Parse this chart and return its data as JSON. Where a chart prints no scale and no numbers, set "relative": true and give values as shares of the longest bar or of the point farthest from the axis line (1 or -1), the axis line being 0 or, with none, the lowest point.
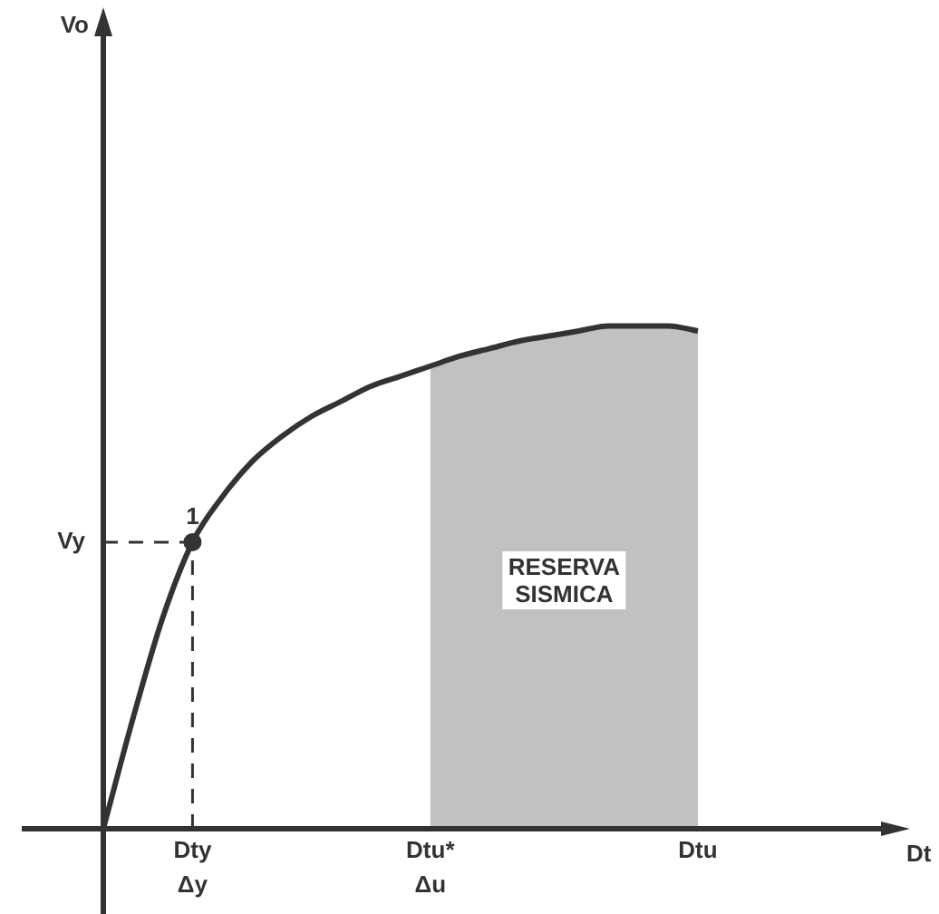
{
  "chart_data": {
    "type": "line",
    "relative": true,
    "categories": [
      null,
      null,
      null,
      "Dty\nΔy",
      null,
      null,
      null,
      null,
      null,
      null,
      null,
      "Dtu*\nΔu",
      null,
      null,
      null,
      null,
      null,
      null,
      null,
      null,
      "Dtu"
    ],
    "series": [
      {
        "color": "#333333",
        "values": [
          0,
          0.22,
          0.42,
          0.57,
          0.66,
          0.73,
          0.78,
          0.82,
          0.85,
          0.88,
          0.9,
          0.92,
          0.94,
          0.955,
          0.97,
          0.98,
          0.99,
          1.0,
          1.0,
          1.0,
          0.99
        ]
      }
    ],
    "ref_lines": [
      {
        "axis": "y",
        "value": 0.57,
        "label": "Vy",
        "line_style": "dashed"
      },
      {
        "axis": "x",
        "value": "Dty\nΔy",
        "line_style": "dashed"
      }
    ],
    "bands": [
      {
        "axis": "x",
        "from": "Dtu*\nΔu",
        "to": "Dtu",
        "label": "RESERVA\nSISMICA",
        "color": "#333333"
      }
    ],
    "annotations": [
      {
        "text": "1",
        "x": "Dty\nΔy",
        "y": 0.57
      },
      "Vo",
      "Dt"
    ],
    "marker": "none",
    "line_style": "solid",
    "legend": false
  }
}
